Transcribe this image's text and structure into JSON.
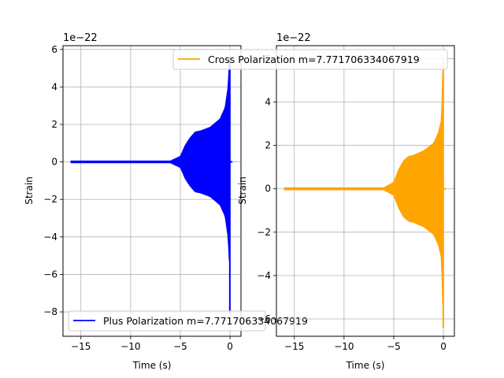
{
  "chart_data": [
    {
      "type": "line",
      "xlabel": "Time (s)",
      "ylabel": "Strain",
      "offset_text": "1e−22",
      "xlim": [
        -16.8,
        1.1
      ],
      "ylim": [
        -9.3,
        6.2
      ],
      "xticks": [
        -15,
        -10,
        -5,
        0
      ],
      "yticks": [
        -8,
        -6,
        -4,
        -2,
        0,
        2,
        4,
        6
      ],
      "xtick_labels": [
        "−15",
        "−10",
        "−5",
        "0"
      ],
      "ytick_labels": [
        "−8",
        "−6",
        "−4",
        "−2",
        "0",
        "2",
        "4",
        "6"
      ],
      "grid": true,
      "legend_position": "lower-left",
      "series": [
        {
          "name": "Plus Polarization m=7.771706334067919",
          "color": "#0000ff",
          "t_start": -16,
          "t_end": 0,
          "envelope": [
            [
              -16,
              0.05
            ],
            [
              -6,
              0.05
            ],
            [
              -5,
              0.3
            ],
            [
              -4.5,
              0.9
            ],
            [
              -4,
              1.3
            ],
            [
              -3.5,
              1.6
            ],
            [
              -3,
              1.65
            ],
            [
              -2,
              1.85
            ],
            [
              -1,
              2.3
            ],
            [
              -0.5,
              2.9
            ],
            [
              -0.2,
              4.0
            ],
            [
              -0.05,
              5.6
            ],
            [
              0,
              0
            ]
          ],
          "peak_min": -8.1
        }
      ]
    },
    {
      "type": "line",
      "xlabel": "Time (s)",
      "ylabel": "Strain",
      "offset_text": "1e−22",
      "xlim": [
        -16.8,
        1.1
      ],
      "ylim": [
        -6.8,
        6.6
      ],
      "xticks": [
        -15,
        -10,
        -5,
        0
      ],
      "yticks": [
        -6,
        -4,
        -2,
        0,
        2,
        4,
        6
      ],
      "xtick_labels": [
        "−15",
        "−10",
        "−5",
        "0"
      ],
      "ytick_labels": [
        "−6",
        "−4",
        "−2",
        "0",
        "2",
        "4",
        "6"
      ],
      "grid": true,
      "legend_position": "upper-center",
      "series": [
        {
          "name": "Cross Polarization m=7.771706334067919",
          "color": "#ffa500",
          "t_start": -16,
          "t_end": 0,
          "envelope": [
            [
              -16,
              0.05
            ],
            [
              -6,
              0.05
            ],
            [
              -5,
              0.3
            ],
            [
              -4.5,
              0.9
            ],
            [
              -4,
              1.3
            ],
            [
              -3.5,
              1.5
            ],
            [
              -3,
              1.55
            ],
            [
              -2,
              1.75
            ],
            [
              -1,
              2.1
            ],
            [
              -0.5,
              2.6
            ],
            [
              -0.2,
              3.2
            ],
            [
              -0.05,
              5.9
            ],
            [
              0,
              0
            ]
          ],
          "peak_min": -6.4
        }
      ]
    }
  ]
}
